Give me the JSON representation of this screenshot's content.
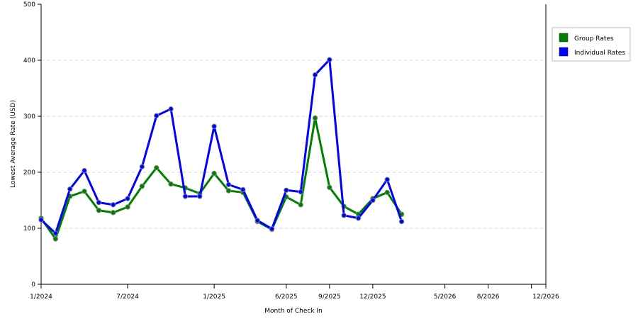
{
  "chart_data": {
    "type": "line",
    "title": "",
    "xlabel": "Month of Check In",
    "ylabel": "Lowest Average Rate (USD)",
    "ylim": [
      0,
      500
    ],
    "yticks": [
      0,
      100,
      200,
      300,
      400,
      500
    ],
    "grid": true,
    "legend_position": "right",
    "x": [
      "1/2024",
      "2/2024",
      "3/2024",
      "4/2024",
      "5/2024",
      "6/2024",
      "7/2024",
      "8/2024",
      "9/2024",
      "10/2024",
      "11/2024",
      "12/2024",
      "1/2025",
      "2/2025",
      "3/2025",
      "4/2025",
      "5/2025",
      "6/2025",
      "7/2025",
      "8/2025",
      "9/2025",
      "10/2025",
      "11/2025",
      "12/2025",
      "1/2026",
      "2/2026",
      "3/2026",
      "4/2026",
      "5/2026",
      "6/2026",
      "7/2026",
      "8/2026",
      "9/2026",
      "10/2026",
      "11/2026",
      "12/2026"
    ],
    "x_tick_labels": [
      {
        "label": "1/2024",
        "x": "1/2024"
      },
      {
        "label": "7/2024",
        "x": "7/2024"
      },
      {
        "label": "1/2025",
        "x": "1/2025"
      },
      {
        "label": "6/2025",
        "x": "6/2025"
      },
      {
        "label": "9/2025",
        "x": "9/2025"
      },
      {
        "label": "12/2025",
        "x": "12/2025"
      },
      {
        "label": "5/2026",
        "x": "5/2026"
      },
      {
        "label": "8/2026",
        "x": "8/2026"
      },
      {
        "label": "",
        "x": "11/2026"
      },
      {
        "label": "12/2026",
        "x": "12/2026"
      }
    ],
    "series": [
      {
        "name": "Group Rates",
        "color": "#008000",
        "points": [
          {
            "x": "1/2024",
            "y": 118
          },
          {
            "x": "2/2024",
            "y": 81
          },
          {
            "x": "3/2024",
            "y": 157
          },
          {
            "x": "4/2024",
            "y": 166
          },
          {
            "x": "5/2024",
            "y": 132
          },
          {
            "x": "6/2024",
            "y": 128
          },
          {
            "x": "7/2024",
            "y": 138
          },
          {
            "x": "8/2024",
            "y": 175
          },
          {
            "x": "9/2024",
            "y": 208
          },
          {
            "x": "10/2024",
            "y": 179
          },
          {
            "x": "11/2024",
            "y": 172
          },
          {
            "x": "12/2024",
            "y": 162
          },
          {
            "x": "1/2025",
            "y": 198
          },
          {
            "x": "2/2025",
            "y": 167
          },
          {
            "x": "3/2025",
            "y": 164
          },
          {
            "x": "4/2025",
            "y": 112
          },
          {
            "x": "5/2025",
            "y": 98
          },
          {
            "x": "6/2025",
            "y": 156
          },
          {
            "x": "7/2025",
            "y": 142
          },
          {
            "x": "8/2025",
            "y": 297
          },
          {
            "x": "9/2025",
            "y": 173
          },
          {
            "x": "10/2025",
            "y": 139
          },
          {
            "x": "11/2025",
            "y": 125
          },
          {
            "x": "12/2025",
            "y": 153
          },
          {
            "x": "1/2026",
            "y": 164
          },
          {
            "x": "2/2026",
            "y": 125
          }
        ]
      },
      {
        "name": "Individual Rates",
        "color": "#0000ff",
        "points": [
          {
            "x": "1/2024",
            "y": 115
          },
          {
            "x": "2/2024",
            "y": 91
          },
          {
            "x": "3/2024",
            "y": 170
          },
          {
            "x": "4/2024",
            "y": 203
          },
          {
            "x": "5/2024",
            "y": 146
          },
          {
            "x": "6/2024",
            "y": 142
          },
          {
            "x": "7/2024",
            "y": 153
          },
          {
            "x": "8/2024",
            "y": 210
          },
          {
            "x": "9/2024",
            "y": 301
          },
          {
            "x": "10/2024",
            "y": 313
          },
          {
            "x": "11/2024",
            "y": 157
          },
          {
            "x": "12/2024",
            "y": 157
          },
          {
            "x": "1/2025",
            "y": 282
          },
          {
            "x": "2/2025",
            "y": 178
          },
          {
            "x": "3/2025",
            "y": 169
          },
          {
            "x": "4/2025",
            "y": 114
          },
          {
            "x": "5/2025",
            "y": 99
          },
          {
            "x": "6/2025",
            "y": 168
          },
          {
            "x": "7/2025",
            "y": 165
          },
          {
            "x": "8/2025",
            "y": 374
          },
          {
            "x": "9/2025",
            "y": 401
          },
          {
            "x": "10/2025",
            "y": 123
          },
          {
            "x": "11/2025",
            "y": 118
          },
          {
            "x": "12/2025",
            "y": 150
          },
          {
            "x": "1/2026",
            "y": 187
          },
          {
            "x": "2/2026",
            "y": 112
          }
        ]
      }
    ]
  }
}
